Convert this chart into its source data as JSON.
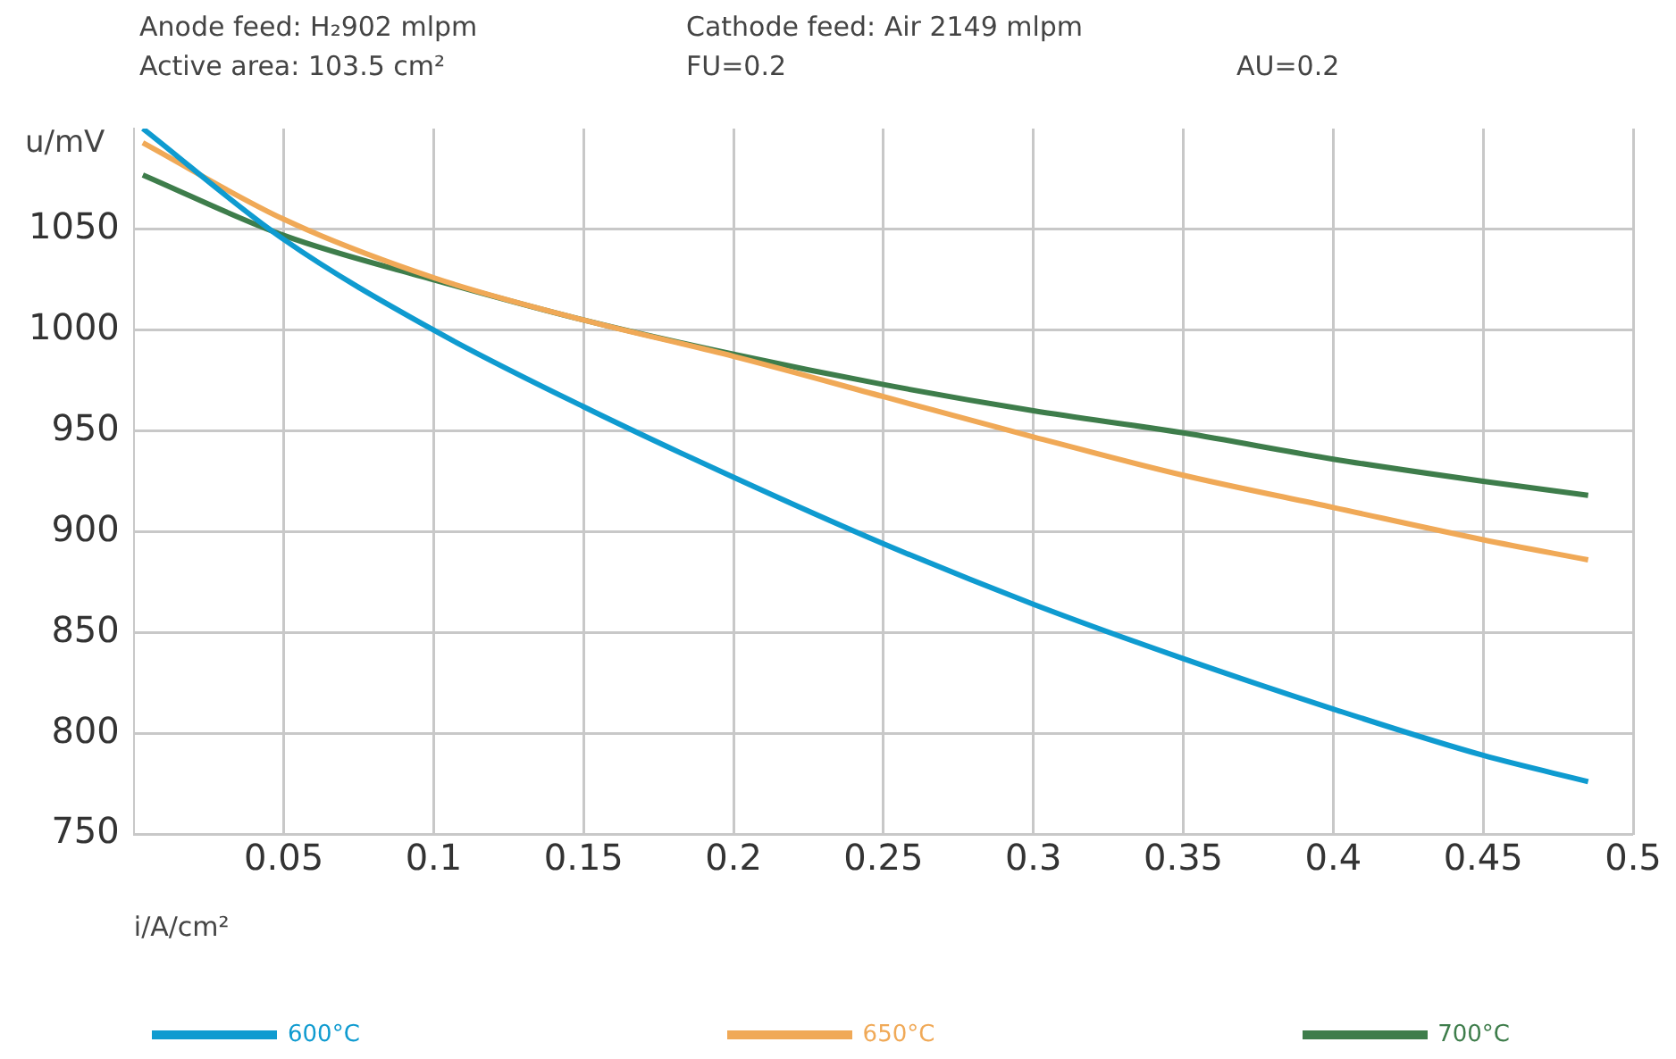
{
  "chart_data": {
    "type": "line",
    "annotations": [
      "Anode feed: H₂902 mlpm",
      "Cathode feed: Air 2149 mlpm",
      "Active area: 103.5 cm²",
      "FU=0.2",
      "AU=0.2"
    ],
    "xlabel": "i/A/cm²",
    "ylabel": "u/mV",
    "x": [
      0.003,
      0.05,
      0.1,
      0.15,
      0.2,
      0.25,
      0.3,
      0.35,
      0.4,
      0.45,
      0.485
    ],
    "series": [
      {
        "name": "600°C",
        "color": "#0f9bd0",
        "values": [
          1100,
          1045,
          1000,
          962,
          927,
          894,
          864,
          837,
          812,
          789,
          776
        ]
      },
      {
        "name": "650°C",
        "color": "#f0a957",
        "values": [
          1093,
          1055,
          1026,
          1005,
          987,
          967,
          947,
          928,
          912,
          896,
          886
        ]
      },
      {
        "name": "700°C",
        "color": "#3e7d4b",
        "values": [
          1077,
          1047,
          1025,
          1005,
          988,
          973,
          960,
          949,
          936,
          925,
          918
        ]
      }
    ],
    "xlim": [
      0,
      0.5
    ],
    "xticks": [
      0.05,
      0.1,
      0.15,
      0.2,
      0.25,
      0.3,
      0.35,
      0.4,
      0.45,
      0.5
    ],
    "ylim": [
      750,
      1100
    ],
    "yticks": [
      750,
      800,
      850,
      900,
      950,
      1000,
      1050
    ],
    "grid": true,
    "legend": "bottom"
  }
}
